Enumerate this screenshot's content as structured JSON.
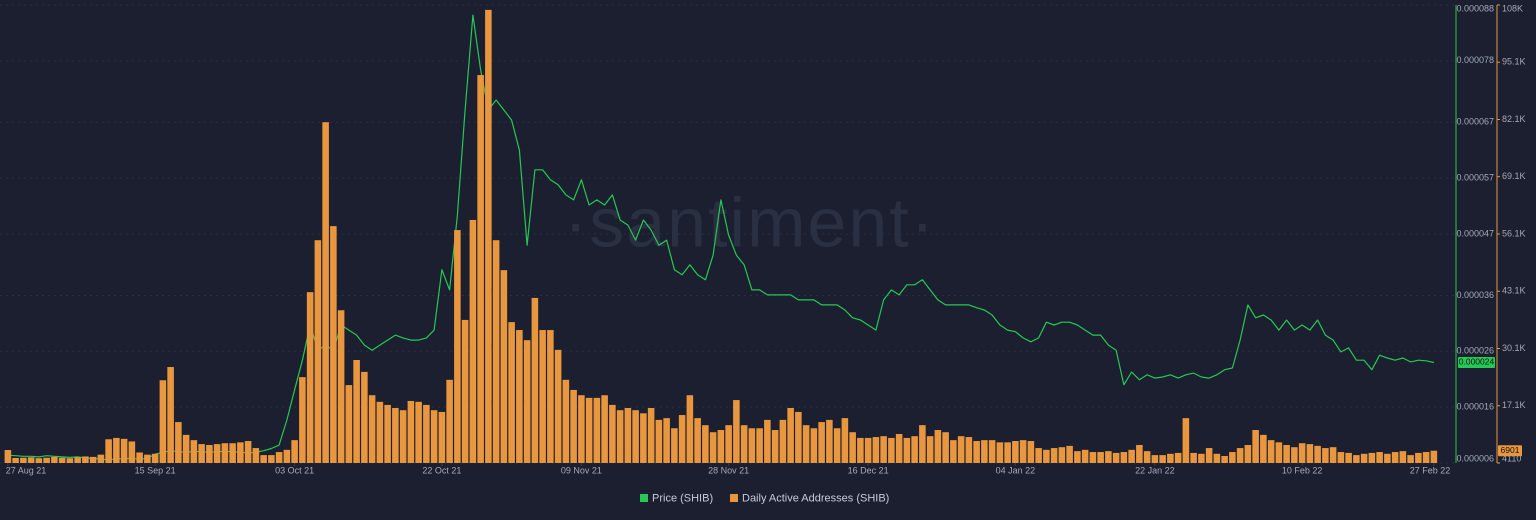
{
  "chart_data": {
    "type": "combo",
    "watermark": "·santiment·",
    "grid": true,
    "categories": [
      "27 Aug 21",
      null,
      null,
      null,
      null,
      null,
      null,
      null,
      null,
      null,
      null,
      null,
      null,
      null,
      null,
      null,
      null,
      null,
      null,
      "15 Sep 21",
      null,
      null,
      null,
      null,
      null,
      null,
      null,
      null,
      null,
      null,
      null,
      null,
      null,
      null,
      null,
      null,
      null,
      "03 Oct 21",
      null,
      null,
      null,
      null,
      null,
      null,
      null,
      null,
      null,
      null,
      null,
      null,
      null,
      null,
      null,
      null,
      null,
      null,
      "22 Oct 21",
      null,
      null,
      null,
      null,
      null,
      null,
      null,
      null,
      null,
      null,
      null,
      null,
      null,
      null,
      null,
      null,
      null,
      "09 Nov 21",
      null,
      null,
      null,
      null,
      null,
      null,
      null,
      null,
      null,
      null,
      null,
      null,
      null,
      null,
      null,
      null,
      null,
      null,
      "28 Nov 21",
      null,
      null,
      null,
      null,
      null,
      null,
      null,
      null,
      null,
      null,
      null,
      null,
      null,
      null,
      null,
      null,
      null,
      "16 Dec 21",
      null,
      null,
      null,
      null,
      null,
      null,
      null,
      null,
      null,
      null,
      null,
      null,
      null,
      null,
      null,
      null,
      null,
      null,
      "04 Jan 22",
      null,
      null,
      null,
      null,
      null,
      null,
      null,
      null,
      null,
      null,
      null,
      null,
      null,
      null,
      null,
      null,
      null,
      "22 Jan 22",
      null,
      null,
      null,
      null,
      null,
      null,
      null,
      null,
      null,
      null,
      null,
      null,
      null,
      null,
      null,
      null,
      null,
      null,
      "10 Feb 22",
      null,
      null,
      null,
      null,
      null,
      null,
      null,
      null,
      null,
      null,
      null,
      null,
      null,
      null,
      null,
      null,
      "27 Feb 22"
    ],
    "ylim": [
      6e-06,
      8.8e-05
    ],
    "yticks": [
      6e-06,
      1.6e-05,
      2.6e-05,
      3.6e-05,
      4.7e-05,
      5.7e-05,
      6.7e-05,
      7.8e-05,
      8.8e-05
    ],
    "y2lim": [
      4110,
      108110
    ],
    "y2ticks": [
      4110,
      {
        "value": 17110,
        "label": "17.1K"
      },
      {
        "value": 30110,
        "label": "30.1K"
      },
      {
        "value": 43110,
        "label": "43.1K"
      },
      {
        "value": 56110,
        "label": "56.1K"
      },
      {
        "value": 69110,
        "label": "69.1K"
      },
      {
        "value": 82110,
        "label": "82.1K"
      },
      {
        "value": 95110,
        "label": "95.1K"
      },
      {
        "value": 108110,
        "label": "108K"
      }
    ],
    "series": [
      {
        "name": "Price (SHIB)",
        "type": "line",
        "axis": "y",
        "color": "#26c953",
        "values": [
          7.4e-06,
          7.3e-06,
          7.2e-06,
          7.2e-06,
          7.1e-06,
          7.3e-06,
          7.2e-06,
          7.1e-06,
          7e-06,
          7.1e-06,
          6.9e-06,
          6.8e-06,
          6.7e-06,
          6.6e-06,
          6.7e-06,
          6.8e-06,
          6.8e-06,
          6.7e-06,
          6.8e-06,
          7.6e-06,
          7.9e-06,
          8.2e-06,
          8e-06,
          7.9e-06,
          8.1e-06,
          8e-06,
          7.9e-06,
          8e-06,
          8.1e-06,
          8e-06,
          7.9e-06,
          7.8e-06,
          7.9e-06,
          8.2e-06,
          8.6e-06,
          9.2e-06,
          1.37e-05,
          1.91e-05,
          2.44e-05,
          3.07e-05,
          2.62e-05,
          2.71e-05,
          2.62e-05,
          3.07e-05,
          2.98e-05,
          2.89e-05,
          2.71e-05,
          2.62e-05,
          2.71e-05,
          2.8e-05,
          2.89e-05,
          2.84e-05,
          2.8e-05,
          2.8e-05,
          2.84e-05,
          2.98e-05,
          4.06e-05,
          3.7e-05,
          5.04e-05,
          6.92e-05,
          8.62e-05,
          7.64e-05,
          6.92e-05,
          7.1e-05,
          6.92e-05,
          6.74e-05,
          6.2e-05,
          4.5e-05,
          5.85e-05,
          5.85e-05,
          5.67e-05,
          5.58e-05,
          5.4e-05,
          5.31e-05,
          5.67e-05,
          5.22e-05,
          5.31e-05,
          5.22e-05,
          5.4e-05,
          4.95e-05,
          4.86e-05,
          4.59e-05,
          4.95e-05,
          4.77e-05,
          4.5e-05,
          4.59e-05,
          4.06e-05,
          3.97e-05,
          4.15e-05,
          3.97e-05,
          3.88e-05,
          4.32e-05,
          5.31e-05,
          4.68e-05,
          4.32e-05,
          4.15e-05,
          3.7e-05,
          3.7e-05,
          3.61e-05,
          3.61e-05,
          3.61e-05,
          3.61e-05,
          3.52e-05,
          3.52e-05,
          3.52e-05,
          3.43e-05,
          3.43e-05,
          3.43e-05,
          3.34e-05,
          3.2e-05,
          3.16e-05,
          3.07e-05,
          2.98e-05,
          3.52e-05,
          3.7e-05,
          3.61e-05,
          3.79e-05,
          3.79e-05,
          3.88e-05,
          3.7e-05,
          3.52e-05,
          3.43e-05,
          3.43e-05,
          3.43e-05,
          3.43e-05,
          3.38e-05,
          3.34e-05,
          3.25e-05,
          3.07e-05,
          2.98e-05,
          2.95e-05,
          2.84e-05,
          2.77e-05,
          2.84e-05,
          3.12e-05,
          3.07e-05,
          3.12e-05,
          3.12e-05,
          3.07e-05,
          2.98e-05,
          2.89e-05,
          2.89e-05,
          2.71e-05,
          2.62e-05,
          2e-05,
          2.23e-05,
          2.09e-05,
          2.18e-05,
          2.12e-05,
          2.14e-05,
          2.18e-05,
          2.12e-05,
          2.18e-05,
          2.21e-05,
          2.14e-05,
          2.12e-05,
          2.18e-05,
          2.27e-05,
          2.3e-05,
          2.8e-05,
          3.43e-05,
          3.2e-05,
          3.25e-05,
          3.16e-05,
          2.98e-05,
          3.16e-05,
          2.98e-05,
          3.07e-05,
          2.98e-05,
          3.16e-05,
          2.89e-05,
          2.8e-05,
          2.59e-05,
          2.66e-05,
          2.44e-05,
          2.44e-05,
          2.27e-05,
          2.53e-05,
          2.48e-05,
          2.44e-05,
          2.48e-05,
          2.41e-05,
          2.44e-05,
          2.43e-05,
          2.4e-05
        ]
      },
      {
        "name": "Daily Active Addresses (SHIB)",
        "type": "bar",
        "axis": "y2",
        "color": "#e8973f",
        "values": [
          7060,
          5250,
          5300,
          5400,
          5200,
          5300,
          5500,
          5300,
          5200,
          5400,
          5600,
          5500,
          6000,
          9500,
          9800,
          9600,
          9000,
          6500,
          6000,
          6200,
          22900,
          25900,
          13400,
          10500,
          9300,
          8400,
          8200,
          8400,
          8600,
          8600,
          8800,
          9100,
          7500,
          5900,
          5900,
          6600,
          7100,
          9300,
          23600,
          42900,
          54700,
          81500,
          57900,
          38800,
          21800,
          27500,
          24800,
          19500,
          18000,
          17300,
          16600,
          16100,
          18200,
          18000,
          17300,
          16100,
          15700,
          23000,
          57000,
          36600,
          59300,
          92200,
          107000,
          54700,
          47900,
          36100,
          34300,
          32000,
          41600,
          34300,
          34300,
          29800,
          23000,
          20700,
          19500,
          18900,
          18900,
          19500,
          17300,
          16100,
          16600,
          16100,
          15400,
          16600,
          13900,
          14300,
          12000,
          15000,
          19500,
          14300,
          12700,
          11100,
          11600,
          12700,
          18400,
          12700,
          12000,
          12000,
          13900,
          11600,
          13900,
          16600,
          15700,
          12700,
          12000,
          13400,
          13900,
          12000,
          14300,
          11100,
          9800,
          9800,
          10000,
          10200,
          9800,
          10700,
          9800,
          10200,
          12700,
          10200,
          11600,
          11100,
          9300,
          10200,
          10000,
          9100,
          9300,
          9300,
          8800,
          8800,
          9100,
          9300,
          9100,
          7500,
          7100,
          7500,
          7700,
          8000,
          6800,
          7100,
          6600,
          6600,
          6800,
          6400,
          6600,
          7100,
          8200,
          6800,
          5900,
          5900,
          6200,
          6400,
          14300,
          6400,
          6200,
          7500,
          6200,
          5700,
          6600,
          7500,
          8200,
          11600,
          10500,
          9300,
          8800,
          8200,
          7700,
          8600,
          8400,
          8000,
          7500,
          7700,
          6600,
          6400,
          5900,
          6200,
          6400,
          6600,
          6200,
          6600,
          6800,
          5900,
          6400,
          6600,
          6901
        ]
      }
    ]
  }
}
